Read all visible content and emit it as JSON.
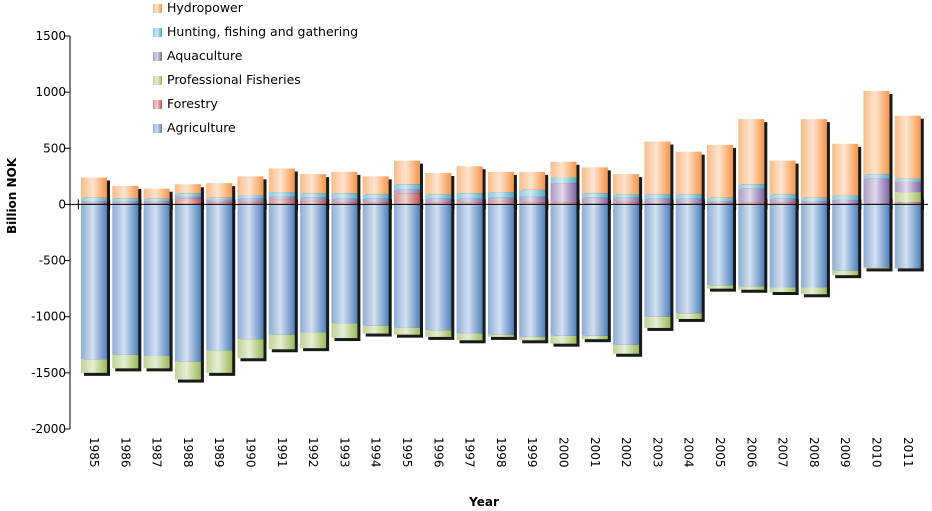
{
  "chart_data": {
    "type": "bar",
    "stacked": true,
    "xlabel": "Year",
    "ylabel": "Billion NOK",
    "ylim": [
      -2000,
      1500
    ],
    "yticks": [
      1500,
      1000,
      500,
      0,
      -500,
      -1000,
      -1500,
      -2000
    ],
    "grid": false,
    "legend_position": "top-left",
    "categories": [
      "1985",
      "1986",
      "1987",
      "1988",
      "1989",
      "1990",
      "1991",
      "1992",
      "1993",
      "1994",
      "1995",
      "1996",
      "1997",
      "1998",
      "1999",
      "2000",
      "2001",
      "2002",
      "2003",
      "2004",
      "2005",
      "2006",
      "2007",
      "2008",
      "2009",
      "2010",
      "2011"
    ],
    "series": [
      {
        "name": "Agriculture",
        "color": "#4f81bd",
        "values": [
          -1380,
          -1340,
          -1350,
          -1400,
          -1300,
          -1200,
          -1160,
          -1140,
          -1060,
          -1080,
          -1100,
          -1120,
          -1150,
          -1160,
          -1180,
          -1170,
          -1170,
          -1250,
          -1000,
          -970,
          -720,
          -730,
          -740,
          -740,
          -590,
          -560,
          -570
        ]
      },
      {
        "name": "Forestry",
        "color": "#c0504d",
        "values": [
          10,
          5,
          10,
          50,
          20,
          20,
          40,
          30,
          20,
          20,
          100,
          20,
          20,
          30,
          20,
          20,
          10,
          20,
          10,
          10,
          10,
          20,
          20,
          10,
          10,
          10,
          20
        ]
      },
      {
        "name": "Professional Fisheries",
        "color": "#9bbb59",
        "values": [
          -120,
          -120,
          -110,
          -160,
          -200,
          -170,
          -130,
          -140,
          -130,
          -70,
          -60,
          -60,
          -60,
          -20,
          -30,
          -70,
          -30,
          -80,
          -100,
          -50,
          -30,
          -30,
          -40,
          -60,
          -40,
          -10,
          90
        ]
      },
      {
        "name": "Aquaculture",
        "color": "#8064a2",
        "values": [
          20,
          20,
          20,
          20,
          20,
          30,
          30,
          30,
          30,
          30,
          30,
          30,
          30,
          30,
          50,
          170,
          50,
          40,
          40,
          40,
          20,
          120,
          30,
          20,
          30,
          220,
          90
        ]
      },
      {
        "name": "Hunting, fishing and gathering",
        "color": "#4bacc6",
        "values": [
          30,
          30,
          20,
          30,
          20,
          30,
          40,
          40,
          50,
          40,
          50,
          40,
          50,
          50,
          60,
          50,
          40,
          30,
          40,
          40,
          30,
          40,
          40,
          30,
          40,
          40,
          30
        ]
      },
      {
        "name": "Hydropower",
        "color": "#f79646",
        "values": [
          180,
          110,
          90,
          80,
          130,
          170,
          210,
          170,
          190,
          160,
          210,
          190,
          240,
          180,
          160,
          140,
          230,
          180,
          470,
          380,
          470,
          580,
          300,
          700,
          460,
          740,
          560
        ]
      }
    ],
    "legend_order": [
      "Hydropower",
      "Hunting, fishing and gathering",
      "Aquaculture",
      "Professional Fisheries",
      "Forestry",
      "Agriculture"
    ]
  }
}
